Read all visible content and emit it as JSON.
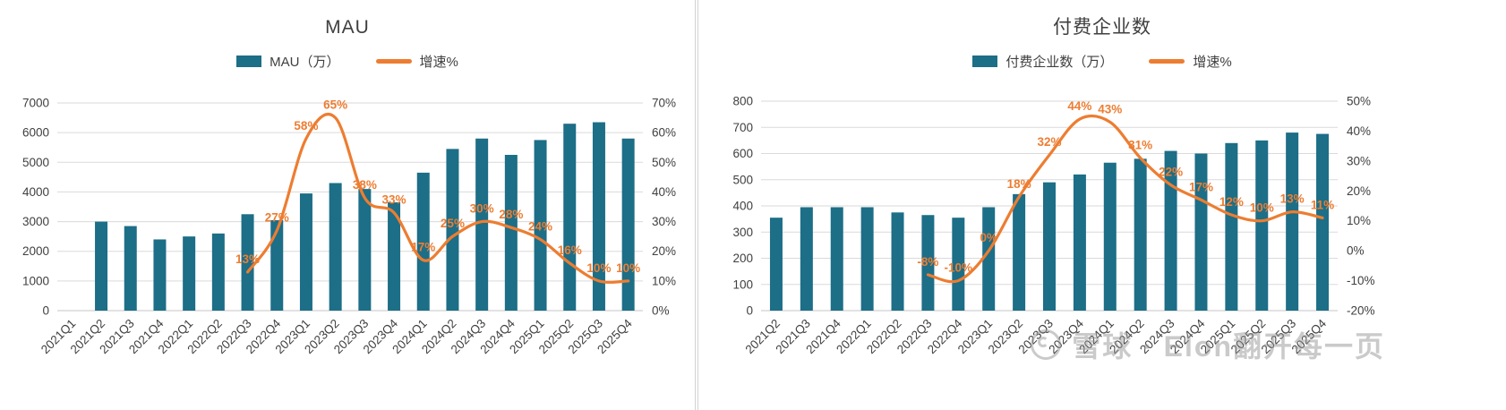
{
  "theme": {
    "bar_color": "#1d6e87",
    "line_color": "#ED7D31",
    "grid_color": "#dadada",
    "baseline_color": "#c6c6c6",
    "axis_text_color": "#404040",
    "title_color": "#3f3f3f"
  },
  "watermark": {
    "text": "雪球 · Elon翻开每一页"
  },
  "chart_data": [
    {
      "type": "bar+line",
      "title": "MAU",
      "legend": [
        "MAU（万）",
        "增速%"
      ],
      "legend_position": "top",
      "grid": true,
      "categories": [
        "2021Q1",
        "2021Q2",
        "2021Q3",
        "2021Q4",
        "2022Q1",
        "2022Q2",
        "2022Q3",
        "2022Q4",
        "2023Q1",
        "2023Q2",
        "2023Q3",
        "2023Q4",
        "2024Q1",
        "2024Q2",
        "2024Q3",
        "2024Q4",
        "2025Q1",
        "2025Q2",
        "2025Q3",
        "2025Q4"
      ],
      "series": [
        {
          "name": "MAU（万）",
          "type": "bar",
          "axis": "left",
          "values": [
            null,
            3000,
            2850,
            2400,
            2500,
            2600,
            3250,
            3050,
            3950,
            4300,
            4100,
            3650,
            4650,
            5450,
            5800,
            5250,
            5750,
            6300,
            6350,
            5800
          ]
        },
        {
          "name": "增速%",
          "type": "line",
          "axis": "right",
          "values": [
            null,
            null,
            null,
            null,
            null,
            null,
            13,
            27,
            58,
            65,
            38,
            33,
            17,
            25,
            30,
            28,
            24,
            16,
            10,
            10
          ],
          "labels": [
            null,
            null,
            null,
            null,
            null,
            null,
            "13%",
            "27%",
            "58%",
            "65%",
            "38%",
            "33%",
            "17%",
            "25%",
            "30%",
            "28%",
            "24%",
            "16%",
            "10%",
            "10%"
          ]
        }
      ],
      "left_axis": {
        "min": 0,
        "max": 7000,
        "ticks": [
          "0",
          "1000",
          "2000",
          "3000",
          "4000",
          "5000",
          "6000",
          "7000"
        ]
      },
      "right_axis": {
        "min": 0,
        "max": 70,
        "ticks": [
          "0%",
          "10%",
          "20%",
          "30%",
          "40%",
          "50%",
          "60%",
          "70%"
        ]
      }
    },
    {
      "type": "bar+line",
      "title": "付费企业数",
      "legend": [
        "付费企业数（万）",
        "增速%"
      ],
      "legend_position": "top",
      "grid": true,
      "categories": [
        "2021Q2",
        "2021Q3",
        "2021Q4",
        "2022Q1",
        "2022Q2",
        "2022Q3",
        "2022Q4",
        "2023Q1",
        "2023Q2",
        "2023Q3",
        "2023Q4",
        "2024Q1",
        "2024Q2",
        "2024Q3",
        "2024Q4",
        "2025Q1",
        "2025Q2",
        "2025Q3",
        "2025Q4"
      ],
      "series": [
        {
          "name": "付费企业数（万）",
          "type": "bar",
          "axis": "left",
          "values": [
            355,
            395,
            395,
            395,
            375,
            365,
            355,
            395,
            445,
            490,
            520,
            565,
            580,
            610,
            600,
            640,
            650,
            680,
            675
          ]
        },
        {
          "name": "增速%",
          "type": "line",
          "axis": "right",
          "values": [
            null,
            null,
            null,
            null,
            null,
            -8,
            -10,
            0,
            18,
            32,
            44,
            43,
            31,
            22,
            17,
            12,
            10,
            13,
            11
          ],
          "labels": [
            null,
            null,
            null,
            null,
            null,
            "-8%",
            "-10%",
            "0%",
            "18%",
            "32%",
            "44%",
            "43%",
            "31%",
            "22%",
            "17%",
            "12%",
            "10%",
            "13%",
            "11%"
          ]
        }
      ],
      "left_axis": {
        "min": 0,
        "max": 800,
        "ticks": [
          "0",
          "100",
          "200",
          "300",
          "400",
          "500",
          "600",
          "700",
          "800"
        ]
      },
      "right_axis": {
        "min": -20,
        "max": 50,
        "ticks": [
          "-20%",
          "-10%",
          "0%",
          "10%",
          "20%",
          "30%",
          "40%",
          "50%"
        ]
      }
    }
  ]
}
